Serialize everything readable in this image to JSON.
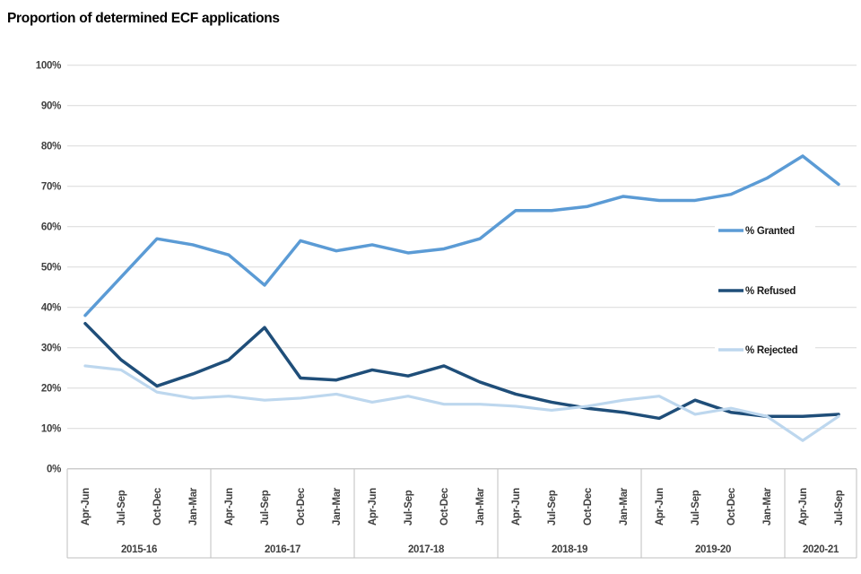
{
  "title": "Proportion of determined ECF applications",
  "chart_data": {
    "type": "line",
    "title": "Proportion of determined ECF applications",
    "x_categories": [
      "Apr-Jun",
      "Jul-Sep",
      "Oct-Dec",
      "Jan-Mar",
      "Apr-Jun",
      "Jul-Sep",
      "Oct-Dec",
      "Jan-Mar",
      "Apr-Jun",
      "Jul-Sep",
      "Oct-Dec",
      "Jan-Mar",
      "Apr-Jun",
      "Jul-Sep",
      "Oct-Dec",
      "Jan-Mar",
      "Apr-Jun",
      "Jul-Sep",
      "Oct-Dec",
      "Jan-Mar",
      "Apr-Jun",
      "Jul-Sep"
    ],
    "year_groups": [
      {
        "label": "2015-16",
        "count": 4
      },
      {
        "label": "2016-17",
        "count": 4
      },
      {
        "label": "2017-18",
        "count": 4
      },
      {
        "label": "2018-19",
        "count": 4
      },
      {
        "label": "2019-20",
        "count": 4
      },
      {
        "label": "2020-21",
        "count": 2
      }
    ],
    "y_ticks": [
      "0%",
      "10%",
      "20%",
      "30%",
      "40%",
      "50%",
      "60%",
      "70%",
      "80%",
      "90%",
      "100%"
    ],
    "ylim": [
      0,
      100
    ],
    "grid": true,
    "legend_position": "inside-right",
    "series": [
      {
        "name": "% Granted",
        "color": "#5B9BD5",
        "values": [
          38,
          47.5,
          57,
          55.5,
          53,
          45.5,
          56.5,
          54,
          55.5,
          53.5,
          54.5,
          57,
          64,
          64,
          65,
          67.5,
          66.5,
          66.5,
          68,
          72,
          77.5,
          70.5
        ]
      },
      {
        "name": "% Refused",
        "color": "#1F4E79",
        "values": [
          36,
          27,
          20.5,
          23.5,
          27,
          35,
          22.5,
          22,
          24.5,
          23,
          25.5,
          21.5,
          18.5,
          16.5,
          15,
          14,
          12.5,
          17,
          14,
          13,
          13,
          13.5
        ]
      },
      {
        "name": "% Rejected",
        "color": "#BDD7EE",
        "values": [
          25.5,
          24.5,
          19,
          17.5,
          18,
          17,
          17.5,
          18.5,
          16.5,
          18,
          16,
          16,
          15.5,
          14.5,
          15.5,
          17,
          18,
          13.5,
          15,
          13,
          7,
          13
        ]
      }
    ]
  }
}
